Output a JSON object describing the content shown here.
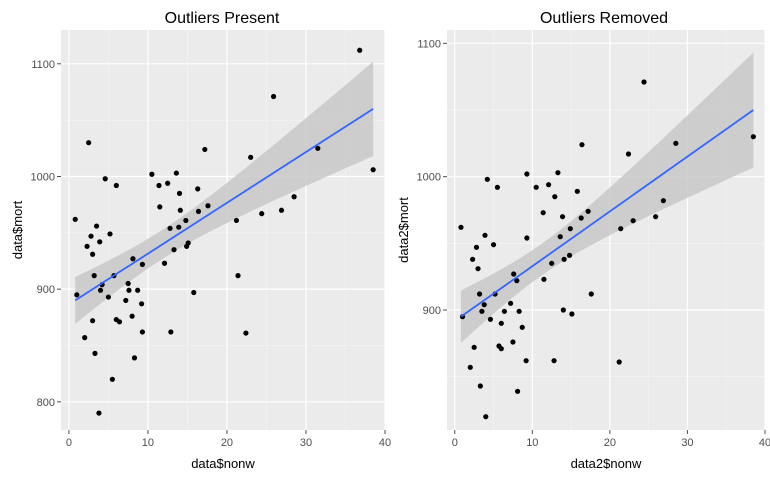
{
  "colors": {
    "panel_bg": "#ebebeb",
    "grid_major": "#ffffff",
    "grid_minor": "#f5f5f5",
    "points": "#000000",
    "fit_line": "#3366ff",
    "confidence_band": "#c8c8c8",
    "tick": "#4d4d4d"
  },
  "chart_data": [
    {
      "type": "scatter",
      "title": "Outliers Present",
      "xlabel": "data$nonw",
      "ylabel": "data$mort",
      "xlim": [
        -1,
        40
      ],
      "ylim": [
        775,
        1130
      ],
      "x_ticks": [
        0,
        10,
        20,
        30,
        40
      ],
      "x_tick_labels": [
        "0",
        "10",
        "20",
        "30",
        "40"
      ],
      "y_ticks": [
        800,
        900,
        1000,
        1100
      ],
      "y_tick_labels": [
        "800",
        "900",
        "1000",
        "1100"
      ],
      "grid": true,
      "smooth": {
        "method": "lm",
        "x0": 0.8,
        "y0": 890,
        "x1": 38.5,
        "y1": 1060
      },
      "points": {
        "x": [
          0.8,
          1.0,
          2.0,
          2.3,
          2.8,
          3.2,
          3.3,
          3.8,
          4.2,
          4.6,
          5.0,
          5.2,
          5.7,
          6.0,
          6.4,
          7.6,
          8.1,
          8.3,
          8.7,
          9.2,
          9.3,
          10.5,
          11.4,
          11.5,
          12.1,
          12.5,
          13.3,
          13.6,
          13.9,
          14.1,
          14.9,
          14.8,
          15.1,
          15.8,
          16.3,
          16.4,
          17.2,
          17.6,
          21.4,
          21.2,
          22.4,
          23.0,
          24.4,
          25.9,
          26.9,
          28.5,
          31.5,
          36.8,
          38.5,
          2.5,
          3.0,
          3.0,
          3.9,
          3.5,
          4.0,
          5.5,
          6.0,
          7.2,
          7.5,
          8.0,
          9.3,
          12.8,
          12.9,
          14.0
        ],
        "y": [
          962,
          895,
          857,
          938,
          947,
          912,
          843,
          790,
          904,
          998,
          893,
          949,
          912,
          873,
          871,
          899,
          927,
          839,
          899,
          887,
          862,
          1002,
          992,
          973,
          923,
          994,
          935,
          1003,
          955,
          970,
          938,
          961,
          941,
          897,
          989,
          969,
          1024,
          974,
          912,
          961,
          861,
          1017,
          967,
          1071,
          970,
          982,
          1025,
          1112,
          1006,
          1030,
          872,
          931,
          942,
          956,
          899,
          820,
          992,
          890,
          905,
          876,
          922,
          954,
          862,
          985
        ]
      }
    },
    {
      "type": "scatter",
      "title": "Outliers Removed",
      "xlabel": "data2$nonw",
      "ylabel": "data2$mort",
      "xlim": [
        -1,
        40
      ],
      "ylim": [
        810,
        1110
      ],
      "x_ticks": [
        0,
        10,
        20,
        30,
        40
      ],
      "x_tick_labels": [
        "0",
        "10",
        "20",
        "30",
        "40"
      ],
      "y_ticks": [
        900,
        1000,
        1100
      ],
      "y_tick_labels": [
        "900",
        "1000",
        "1100"
      ],
      "grid": true,
      "smooth": {
        "method": "lm",
        "x0": 0.8,
        "y0": 895,
        "x1": 38.5,
        "y1": 1050
      },
      "points": {
        "x": [
          0.8,
          1.0,
          2.0,
          2.3,
          2.8,
          3.2,
          3.3,
          3.8,
          4.2,
          4.6,
          5.0,
          5.2,
          5.7,
          6.0,
          6.4,
          7.6,
          8.1,
          8.3,
          8.7,
          9.2,
          9.3,
          10.5,
          11.4,
          11.5,
          12.1,
          12.5,
          13.3,
          13.6,
          13.9,
          14.1,
          14.9,
          14.8,
          15.1,
          15.8,
          16.3,
          16.4,
          17.2,
          17.6,
          21.4,
          21.2,
          22.4,
          23.0,
          24.4,
          25.9,
          26.9,
          28.5,
          38.5,
          2.5,
          3.0,
          3.9,
          3.5,
          4.0,
          5.5,
          6.0,
          7.2,
          7.5,
          8.0,
          9.3,
          12.8,
          12.9,
          14.0
        ],
        "y": [
          962,
          895,
          857,
          938,
          947,
          912,
          843,
          904,
          998,
          893,
          949,
          912,
          873,
          871,
          899,
          927,
          839,
          899,
          887,
          862,
          1002,
          992,
          973,
          923,
          994,
          935,
          1003,
          955,
          970,
          938,
          961,
          941,
          897,
          989,
          969,
          1024,
          974,
          912,
          961,
          861,
          1017,
          967,
          1071,
          970,
          982,
          1025,
          1030,
          872,
          931,
          956,
          899,
          820,
          992,
          890,
          905,
          876,
          922,
          954,
          862,
          985,
          900
        ]
      }
    }
  ]
}
